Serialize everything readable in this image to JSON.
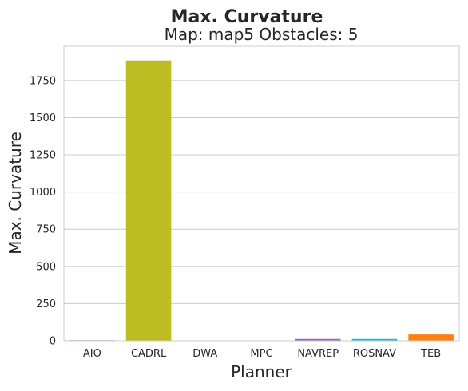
{
  "chart_data": {
    "type": "bar",
    "suptitle": "Max. Curvature",
    "title": "Map: map5 Obstacles: 5",
    "xlabel": "Planner",
    "ylabel": "Max. Curvature",
    "categories": [
      "AIO",
      "CADRL",
      "DWA",
      "MPC",
      "NAVREP",
      "ROSNAV",
      "TEB"
    ],
    "values": [
      5,
      1885,
      0,
      0,
      12,
      12,
      42
    ],
    "colors": [
      "#e8a8e0",
      "#bcbd22",
      "#8c8c8c",
      "#8c564b",
      "#9467bd",
      "#17becf",
      "#ff7f0e"
    ],
    "ylim": [
      0,
      1980
    ],
    "yticks": [
      0,
      250,
      500,
      750,
      1000,
      1250,
      1500,
      1750
    ],
    "grid": true,
    "grid_axis": "y",
    "legend": false
  }
}
